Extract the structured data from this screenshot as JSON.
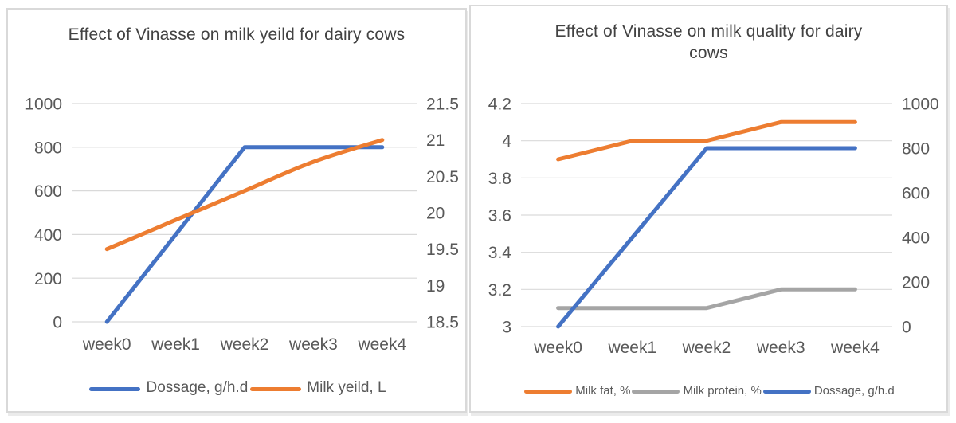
{
  "page": {
    "background": "#ffffff"
  },
  "styles": {
    "gridline_color": "#D9D9D9",
    "tick_color": "#595959",
    "title_color": "#424242",
    "panel_border": "#D9D9D9",
    "blue": "#4472C4",
    "orange": "#ED7D31",
    "gray": "#A5A5A5"
  },
  "chart_data": [
    {
      "type": "line",
      "title": "Effect of Vinasse on milk yeild for dairy cows",
      "categories": [
        "week0",
        "week1",
        "week2",
        "week3",
        "week4"
      ],
      "left_axis": {
        "min": 0,
        "max": 1000,
        "step": 200,
        "tick_labels": [
          "1000",
          "800",
          "600",
          "400",
          "200",
          "0"
        ]
      },
      "right_axis": {
        "min": 18.5,
        "max": 21.5,
        "step": 0.5,
        "tick_labels": [
          "21.5",
          "21",
          "20.5",
          "20",
          "19.5",
          "19",
          "18.5"
        ]
      },
      "grid": true,
      "legend_position": "bottom",
      "series": [
        {
          "name": "Dossage, g/h.d",
          "axis": "left",
          "color": "#4472C4",
          "smooth": false,
          "values": [
            0,
            400,
            800,
            800,
            800
          ]
        },
        {
          "name": "Milk yeild, L",
          "axis": "right",
          "color": "#ED7D31",
          "smooth": true,
          "values": [
            19.5,
            19.9,
            20.3,
            20.7,
            21
          ]
        }
      ]
    },
    {
      "type": "line",
      "title": "Effect of Vinasse on milk quality for dairy cows",
      "categories": [
        "week0",
        "week1",
        "week2",
        "week3",
        "week4"
      ],
      "left_axis": {
        "min": 3,
        "max": 4.2,
        "step": 0.2,
        "tick_labels": [
          "4.2",
          "4",
          "3.8",
          "3.6",
          "3.4",
          "3.2",
          "3"
        ]
      },
      "right_axis": {
        "min": 0,
        "max": 1000,
        "step": 200,
        "tick_labels": [
          "1000",
          "800",
          "600",
          "400",
          "200",
          "0"
        ]
      },
      "grid": true,
      "legend_position": "bottom",
      "series": [
        {
          "name": "Milk fat, %",
          "axis": "left",
          "color": "#ED7D31",
          "smooth": false,
          "values": [
            3.9,
            4,
            4,
            4.1,
            4.1
          ]
        },
        {
          "name": "Milk protein, %",
          "axis": "left",
          "color": "#A5A5A5",
          "smooth": false,
          "values": [
            3.1,
            3.1,
            3.1,
            3.2,
            3.2
          ]
        },
        {
          "name": "Dossage, g/h.d",
          "axis": "right",
          "color": "#4472C4",
          "smooth": false,
          "values": [
            0,
            400,
            800,
            800,
            800
          ]
        }
      ]
    }
  ]
}
